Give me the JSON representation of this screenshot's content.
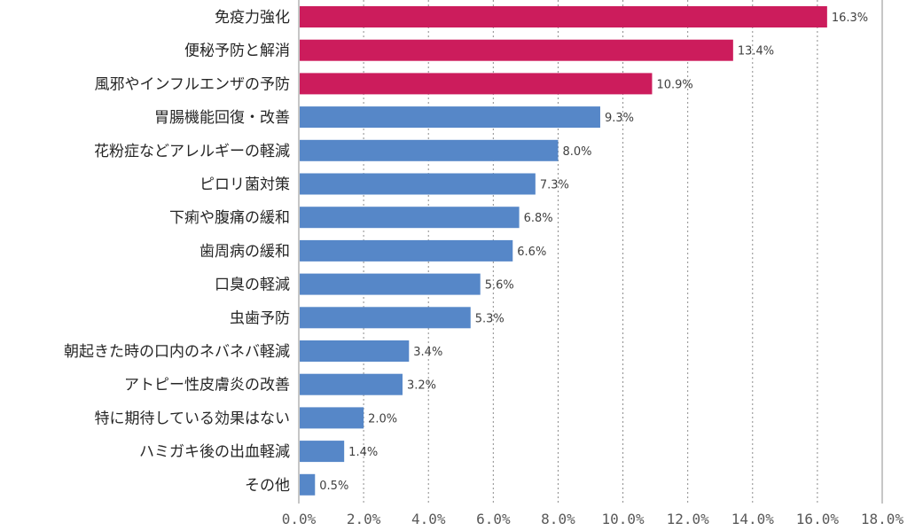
{
  "chart_data": {
    "type": "bar",
    "orientation": "horizontal",
    "categories": [
      "免疫力強化",
      "便秘予防と解消",
      "風邪やインフルエンザの予防",
      "胃腸機能回復・改善",
      "花粉症などアレルギーの軽減",
      "ピロリ菌対策",
      "下痢や腹痛の緩和",
      "歯周病の緩和",
      "口臭の軽減",
      "虫歯予防",
      "朝起きた時の口内のネバネバ軽減",
      "アトピー性皮膚炎の改善",
      "特に期待している効果はない",
      "ハミガキ後の出血軽減",
      "その他"
    ],
    "values": [
      16.3,
      13.4,
      10.9,
      9.3,
      8.0,
      7.3,
      6.8,
      6.6,
      5.6,
      5.3,
      3.4,
      3.2,
      2.0,
      1.4,
      0.5
    ],
    "value_labels": [
      "16.3%",
      "13.4%",
      "10.9%",
      "9.3%",
      "8.0%",
      "7.3%",
      "6.8%",
      "6.6%",
      "5.6%",
      "5.3%",
      "3.4%",
      "3.2%",
      "2.0%",
      "1.4%",
      "0.5%"
    ],
    "xlim": [
      0,
      18
    ],
    "x_ticks": [
      0,
      2,
      4,
      6,
      8,
      10,
      12,
      14,
      16,
      18
    ],
    "x_tick_labels": [
      "0.0%",
      "2.0%",
      "4.0%",
      "6.0%",
      "8.0%",
      "10.0%",
      "12.0%",
      "14.0%",
      "16.0%",
      "18.0%"
    ],
    "title": "",
    "xlabel": "",
    "ylabel": "",
    "grid": "vertical dotted",
    "legend": "none",
    "colors": {
      "highlight": "#cc1c5c",
      "default": "#5687c8",
      "grid": "#8c8c8c",
      "text": "#262626"
    },
    "highlighted_count": 3
  }
}
